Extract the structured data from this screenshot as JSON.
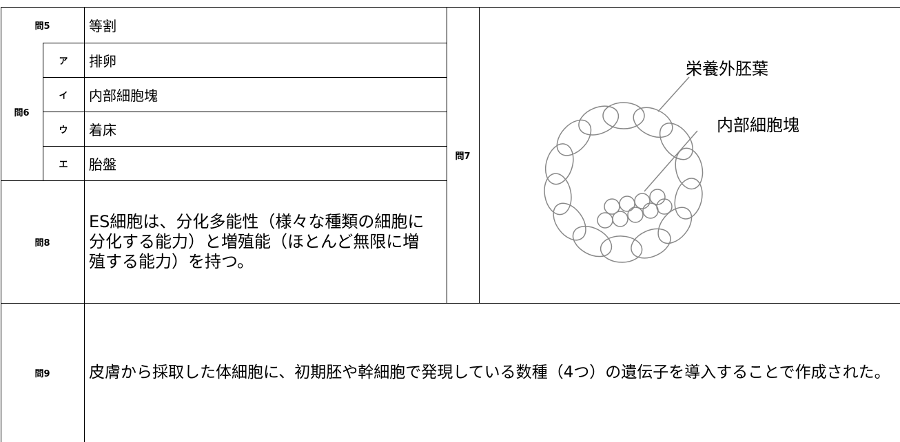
{
  "table": {
    "q5": {
      "label": "問5",
      "answer": "等割"
    },
    "q6": {
      "label": "問6",
      "items": [
        {
          "mark": "ア",
          "answer": "排卵"
        },
        {
          "mark": "イ",
          "answer": "内部細胞塊"
        },
        {
          "mark": "ウ",
          "answer": "着床"
        },
        {
          "mark": "エ",
          "answer": "胎盤"
        }
      ]
    },
    "q7": {
      "label": "問7",
      "figure_labels": [
        "栄養外胚葉",
        "内部細胞塊"
      ]
    },
    "q8": {
      "label": "問8",
      "answer": "ES細胞は、分化多能性（様々な種類の細胞に分化する能力）と増殖能（ほとんど無限に増殖する能力）を持つ。"
    },
    "q9": {
      "label": "問9",
      "answer": "皮膚から採取した体細胞に、初期胚や幹細胞で発現している数種（4つ）の遺伝子を導入することで作成された。"
    }
  }
}
